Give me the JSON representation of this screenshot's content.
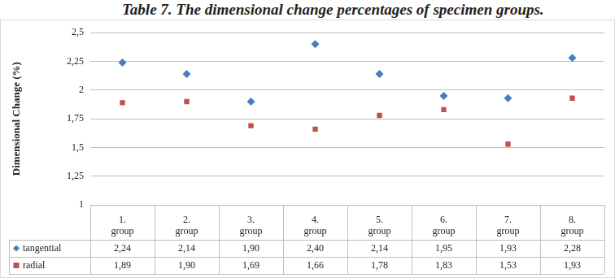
{
  "chart_data": {
    "type": "scatter",
    "title": "Table 7. The dimensional change percentages of specimen groups.",
    "y_label": "Dimensional Change (%)",
    "categories": [
      "1. group",
      "2. group",
      "3. group",
      "4. group",
      "5. group",
      "6. group",
      "7. group",
      "8. group"
    ],
    "series": [
      {
        "name": "tangential",
        "color": "#4a7ebb",
        "marker": "diamond",
        "values": [
          2.24,
          2.14,
          1.9,
          2.4,
          2.14,
          1.95,
          1.93,
          2.28
        ],
        "value_labels": [
          "2,24",
          "2,14",
          "1,90",
          "2,40",
          "2,14",
          "1,95",
          "1,93",
          "2,28"
        ]
      },
      {
        "name": "radial",
        "color": "#c0504d",
        "marker": "square",
        "values": [
          1.89,
          1.9,
          1.69,
          1.66,
          1.78,
          1.83,
          1.53,
          1.93
        ],
        "value_labels": [
          "1,89",
          "1,90",
          "1,69",
          "1,66",
          "1,78",
          "1,83",
          "1,53",
          "1,93"
        ]
      }
    ],
    "ylim": [
      1,
      2.5
    ],
    "yticks": [
      1,
      {
        "value": 1.25,
        "label": "1,25"
      },
      {
        "value": 1.5,
        "label": "1,5"
      },
      {
        "value": 1.75,
        "label": "1,75"
      },
      2,
      {
        "value": 2.25,
        "label": "2,25"
      },
      {
        "value": 2.5,
        "label": "2,5"
      }
    ],
    "grid": true
  }
}
